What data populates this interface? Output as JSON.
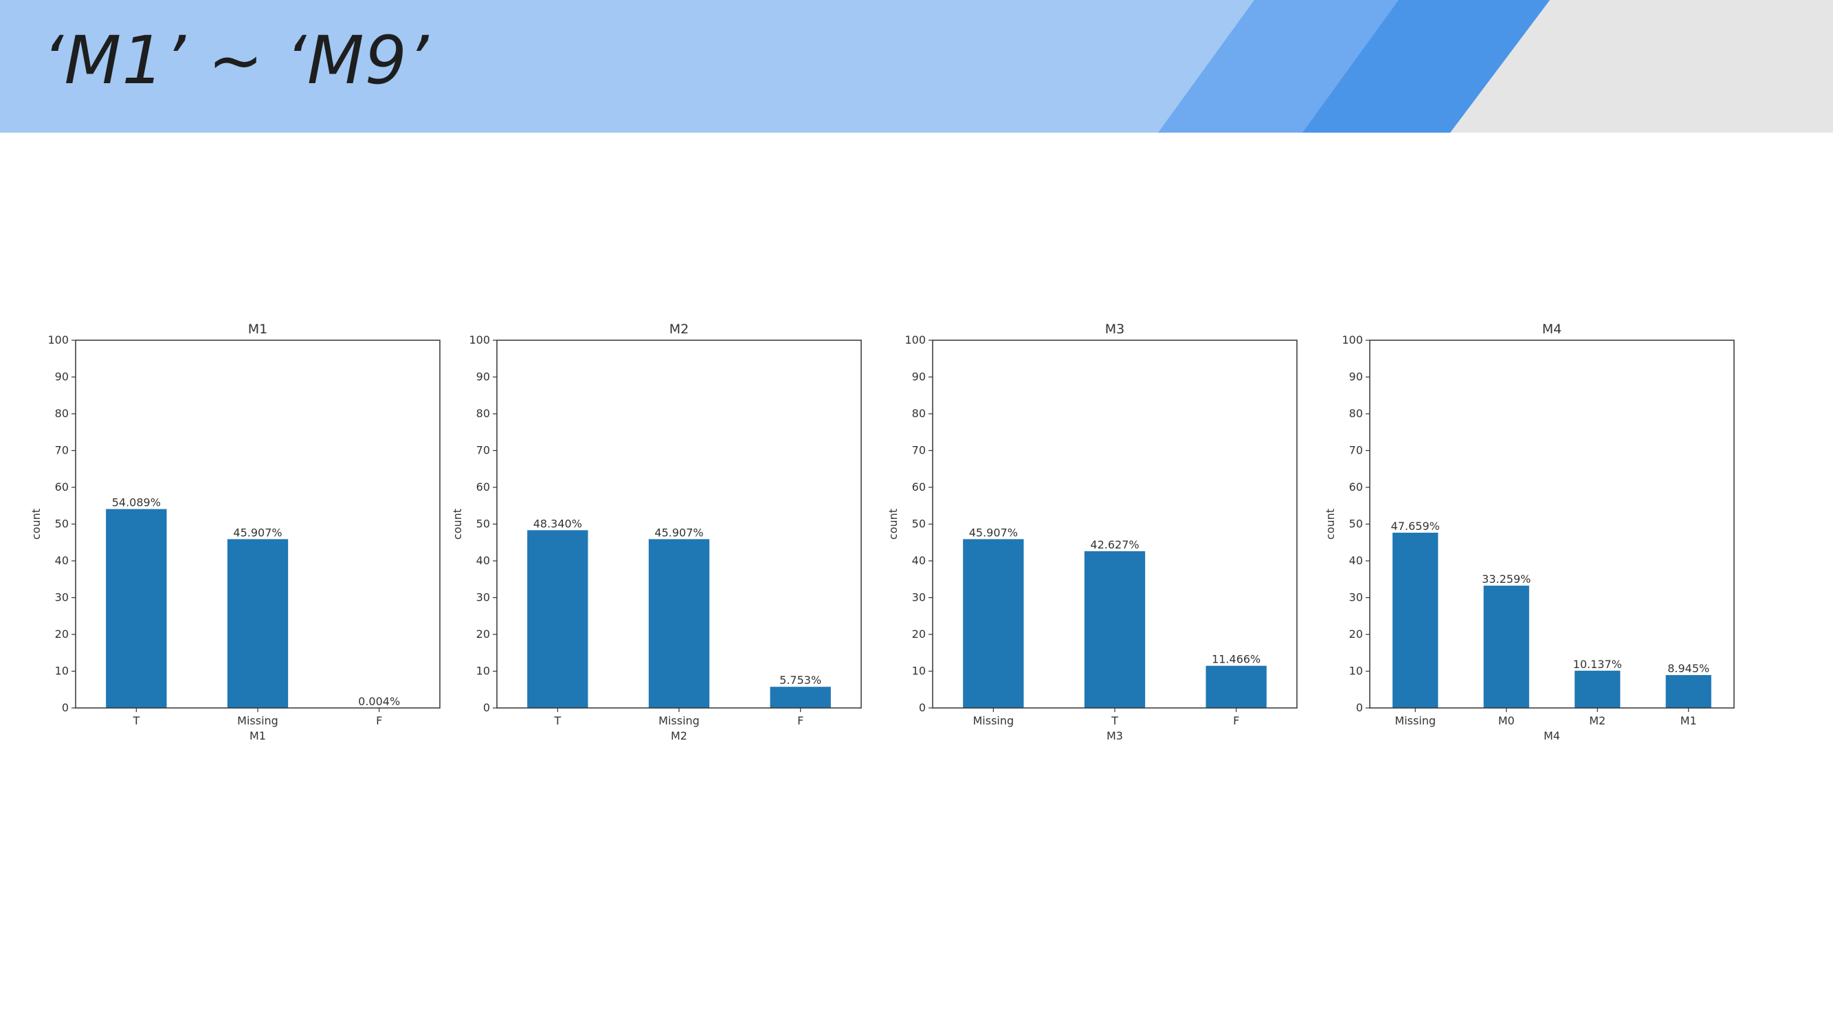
{
  "slide": {
    "title": "‘M1’ ~ ‘M9’"
  },
  "colors": {
    "header_bg": "#a2c8f3",
    "stripe_mid": "#6faaf0",
    "stripe_dark": "#4a95e8",
    "corner_gray": "#e5e5e5",
    "bar": "#1f77b4"
  },
  "chart_data": [
    {
      "type": "bar",
      "title": "M1",
      "xlabel": "M1",
      "ylabel": "count",
      "categories": [
        "T",
        "Missing",
        "F"
      ],
      "values": [
        54.089,
        45.907,
        0.004
      ],
      "data_labels": [
        "54.089%",
        "45.907%",
        "0.004%"
      ],
      "ylim": [
        0,
        100
      ],
      "yticks": [
        0,
        10,
        20,
        30,
        40,
        50,
        60,
        70,
        80,
        90,
        100
      ],
      "grid": false,
      "legend": "none"
    },
    {
      "type": "bar",
      "title": "M2",
      "xlabel": "M2",
      "ylabel": "count",
      "categories": [
        "T",
        "Missing",
        "F"
      ],
      "values": [
        48.34,
        45.907,
        5.753
      ],
      "data_labels": [
        "48.340%",
        "45.907%",
        "5.753%"
      ],
      "ylim": [
        0,
        100
      ],
      "yticks": [
        0,
        10,
        20,
        30,
        40,
        50,
        60,
        70,
        80,
        90,
        100
      ],
      "grid": false,
      "legend": "none"
    },
    {
      "type": "bar",
      "title": "M3",
      "xlabel": "M3",
      "ylabel": "count",
      "categories": [
        "Missing",
        "T",
        "F"
      ],
      "values": [
        45.907,
        42.627,
        11.466
      ],
      "data_labels": [
        "45.907%",
        "42.627%",
        "11.466%"
      ],
      "ylim": [
        0,
        100
      ],
      "yticks": [
        0,
        10,
        20,
        30,
        40,
        50,
        60,
        70,
        80,
        90,
        100
      ],
      "grid": false,
      "legend": "none"
    },
    {
      "type": "bar",
      "title": "M4",
      "xlabel": "M4",
      "ylabel": "count",
      "categories": [
        "Missing",
        "M0",
        "M2",
        "M1"
      ],
      "values": [
        47.659,
        33.259,
        10.137,
        8.945
      ],
      "data_labels": [
        "47.659%",
        "33.259%",
        "10.137%",
        "8.945%"
      ],
      "ylim": [
        0,
        100
      ],
      "yticks": [
        0,
        10,
        20,
        30,
        40,
        50,
        60,
        70,
        80,
        90,
        100
      ],
      "grid": false,
      "legend": "none"
    }
  ]
}
